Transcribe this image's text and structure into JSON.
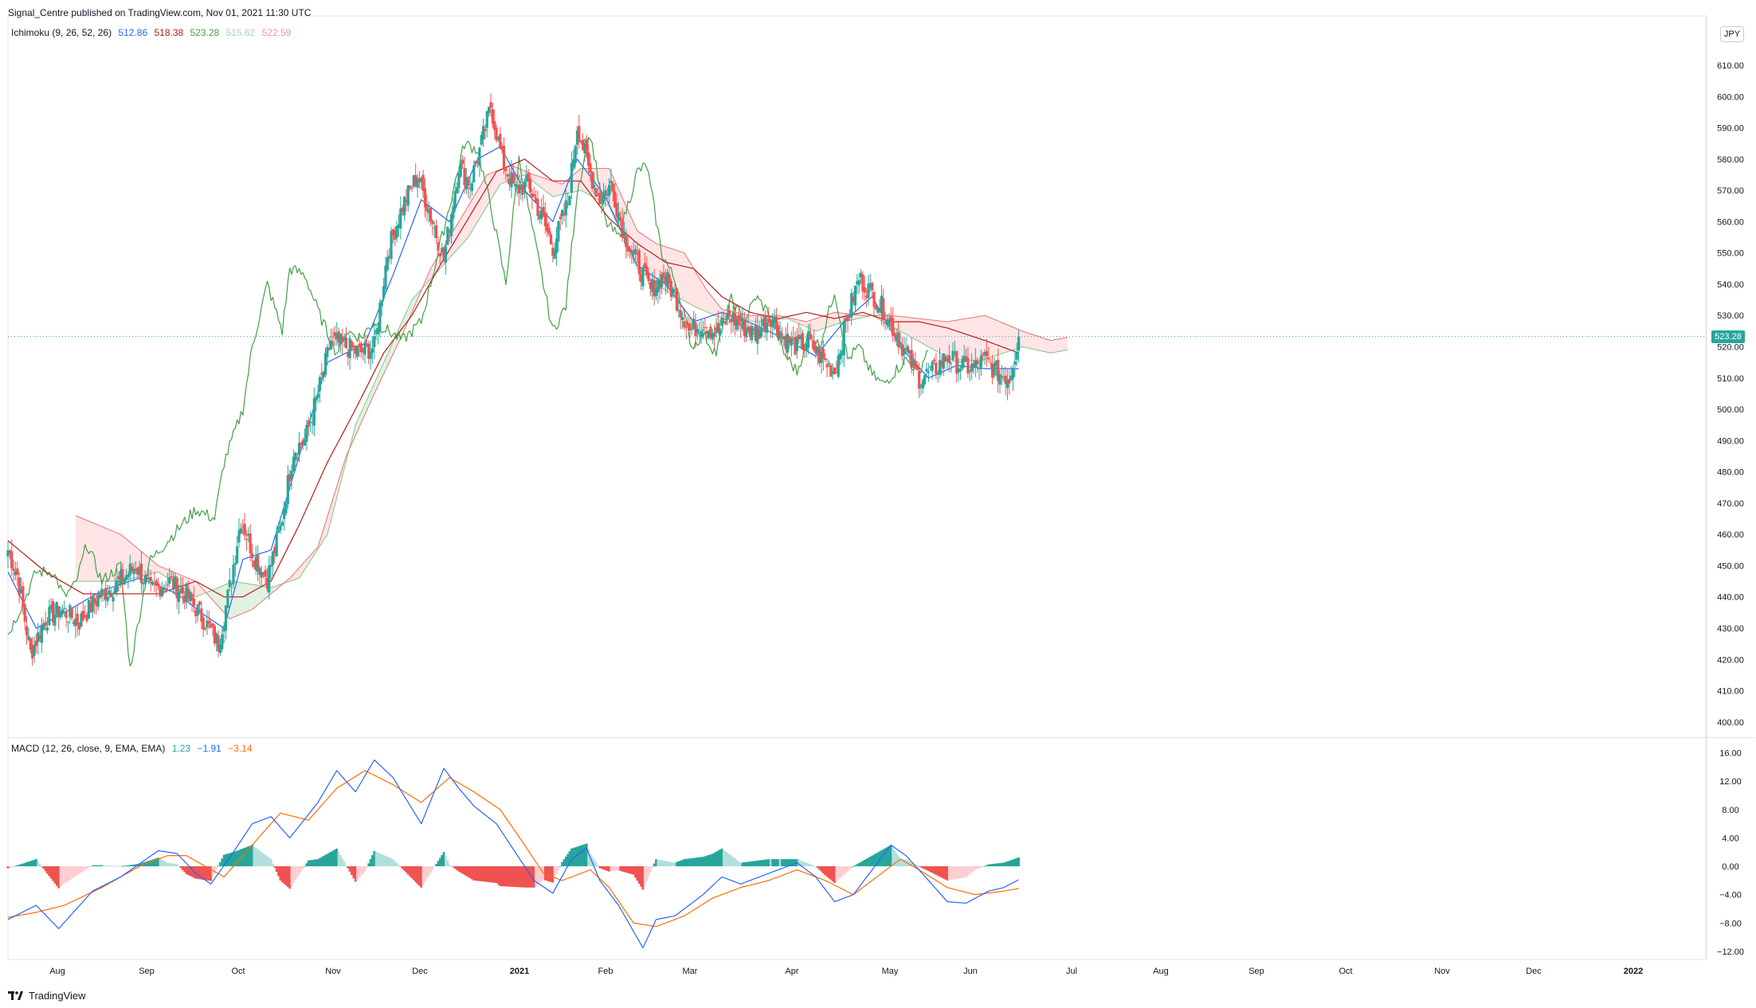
{
  "header": {
    "publisher": "Signal_Centre published on TradingView.com, Nov 01, 2021 11:30 UTC",
    "currency": "JPY",
    "last_price": "523.28",
    "logo_text": "TradingView"
  },
  "indicators": {
    "ichimoku": {
      "name": "Ichimoku (9, 26, 52, 26)",
      "values": [
        "512.86",
        "518.38",
        "523.28",
        "515.62",
        "522.59"
      ],
      "colors": [
        "#2962ff",
        "#b71c1c",
        "#43a047",
        "#a5d6a7",
        "#ef9a9a"
      ]
    },
    "macd": {
      "name": "MACD (12, 26, close, 9, EMA, EMA)",
      "values": [
        "1.23",
        "−1.91",
        "−3.14"
      ],
      "colors": [
        "#26a69a",
        "#2962ff",
        "#ff6d00"
      ]
    }
  },
  "axes": {
    "price_ticks": [
      "610.00",
      "600.00",
      "590.00",
      "580.00",
      "570.00",
      "560.00",
      "550.00",
      "540.00",
      "530.00",
      "520.00",
      "510.00",
      "500.00",
      "490.00",
      "480.00",
      "470.00",
      "460.00",
      "450.00",
      "440.00",
      "430.00",
      "420.00",
      "410.00",
      "400.00"
    ],
    "macd_ticks": [
      "16.00",
      "12.00",
      "8.00",
      "4.00",
      "0.00",
      "−4.00",
      "−8.00",
      "−12.00"
    ],
    "time_labels": [
      "Aug",
      "Sep",
      "Oct",
      "Nov",
      "Dec",
      "2021",
      "Feb",
      "Mar",
      "Apr",
      "May",
      "Jun",
      "Jul",
      "Aug",
      "Sep",
      "Oct",
      "Nov",
      "Dec",
      "2022"
    ]
  },
  "colors": {
    "up": "#26a69a",
    "down": "#ef5350",
    "tenkan": "#2962ff",
    "kijun": "#b71c1c",
    "chikou": "#43a047",
    "macd_line": "#2962ff",
    "signal_line": "#ff6d00",
    "kumo_bull": "#c8e6c9",
    "kumo_bear": "#ffcdd2"
  },
  "chart_data": {
    "type": "candlestick",
    "title": "",
    "price_range": [
      397,
      614
    ],
    "macd_range": [
      -12.6,
      17.3
    ],
    "anchors": {
      "close_path": [
        [
          0,
          455
        ],
        [
          5,
          447
        ],
        [
          12,
          422
        ],
        [
          20,
          433
        ],
        [
          28,
          436
        ],
        [
          38,
          432
        ],
        [
          48,
          440
        ],
        [
          58,
          444
        ],
        [
          68,
          450
        ],
        [
          76,
          442
        ],
        [
          86,
          445
        ],
        [
          96,
          440
        ],
        [
          105,
          432
        ],
        [
          112,
          425
        ],
        [
          118,
          443
        ],
        [
          124,
          465
        ],
        [
          131,
          453
        ],
        [
          138,
          446
        ],
        [
          145,
          462
        ],
        [
          152,
          487
        ],
        [
          158,
          490
        ],
        [
          165,
          505
        ],
        [
          172,
          522
        ],
        [
          180,
          520
        ],
        [
          187,
          518
        ],
        [
          195,
          520
        ],
        [
          202,
          550
        ],
        [
          210,
          565
        ],
        [
          218,
          575
        ],
        [
          226,
          560
        ],
        [
          232,
          548
        ],
        [
          240,
          578
        ],
        [
          246,
          572
        ],
        [
          252,
          585
        ],
        [
          257,
          597
        ],
        [
          263,
          580
        ],
        [
          270,
          570
        ],
        [
          277,
          572
        ],
        [
          283,
          563
        ],
        [
          290,
          552
        ],
        [
          298,
          566
        ],
        [
          303,
          591
        ],
        [
          309,
          577
        ],
        [
          315,
          567
        ],
        [
          321,
          572
        ],
        [
          328,
          556
        ],
        [
          334,
          548
        ],
        [
          342,
          538
        ],
        [
          349,
          543
        ],
        [
          356,
          535
        ],
        [
          363,
          525
        ],
        [
          370,
          528
        ],
        [
          377,
          524
        ],
        [
          384,
          530
        ],
        [
          390,
          527
        ],
        [
          398,
          524
        ],
        [
          406,
          530
        ],
        [
          413,
          523
        ],
        [
          420,
          520
        ],
        [
          426,
          522
        ],
        [
          432,
          517
        ],
        [
          440,
          512
        ],
        [
          447,
          530
        ],
        [
          453,
          542
        ],
        [
          460,
          537
        ],
        [
          466,
          532
        ],
        [
          472,
          525
        ],
        [
          478,
          518
        ],
        [
          485,
          510
        ],
        [
          492,
          512
        ],
        [
          500,
          517
        ],
        [
          507,
          514
        ],
        [
          514,
          513
        ],
        [
          520,
          516
        ],
        [
          526,
          512
        ],
        [
          533,
          510
        ],
        [
          538,
          523
        ]
      ]
    },
    "tenkan_anchors": [
      [
        0,
        448
      ],
      [
        15,
        430
      ],
      [
        30,
        435
      ],
      [
        50,
        442
      ],
      [
        70,
        446
      ],
      [
        90,
        441
      ],
      [
        105,
        434
      ],
      [
        115,
        430
      ],
      [
        125,
        452
      ],
      [
        140,
        455
      ],
      [
        155,
        485
      ],
      [
        170,
        515
      ],
      [
        190,
        521
      ],
      [
        205,
        543
      ],
      [
        220,
        567
      ],
      [
        235,
        560
      ],
      [
        250,
        580
      ],
      [
        262,
        584
      ],
      [
        275,
        570
      ],
      [
        290,
        560
      ],
      [
        303,
        580
      ],
      [
        318,
        568
      ],
      [
        335,
        546
      ],
      [
        350,
        540
      ],
      [
        365,
        528
      ],
      [
        380,
        531
      ],
      [
        398,
        527
      ],
      [
        415,
        522
      ],
      [
        430,
        517
      ],
      [
        445,
        528
      ],
      [
        460,
        536
      ],
      [
        475,
        520
      ],
      [
        490,
        510
      ],
      [
        505,
        514
      ],
      [
        520,
        513
      ],
      [
        538,
        513
      ]
    ],
    "kijun_anchors": [
      [
        0,
        458
      ],
      [
        20,
        448
      ],
      [
        40,
        441
      ],
      [
        60,
        441
      ],
      [
        80,
        441
      ],
      [
        100,
        445
      ],
      [
        115,
        440
      ],
      [
        125,
        440
      ],
      [
        140,
        445
      ],
      [
        155,
        463
      ],
      [
        170,
        483
      ],
      [
        185,
        500
      ],
      [
        200,
        518
      ],
      [
        215,
        530
      ],
      [
        230,
        546
      ],
      [
        245,
        561
      ],
      [
        260,
        576
      ],
      [
        275,
        580
      ],
      [
        290,
        573
      ],
      [
        305,
        573
      ],
      [
        320,
        561
      ],
      [
        335,
        553
      ],
      [
        350,
        547
      ],
      [
        365,
        545
      ],
      [
        380,
        536
      ],
      [
        395,
        531
      ],
      [
        410,
        529
      ],
      [
        425,
        531
      ],
      [
        440,
        529
      ],
      [
        455,
        531
      ],
      [
        470,
        528
      ],
      [
        485,
        528
      ],
      [
        500,
        526
      ],
      [
        520,
        522
      ],
      [
        538,
        518
      ]
    ],
    "span_a_anchors": [
      [
        36,
        445
      ],
      [
        60,
        445
      ],
      [
        80,
        448
      ],
      [
        100,
        440
      ],
      [
        120,
        445
      ],
      [
        140,
        443
      ],
      [
        155,
        446
      ],
      [
        170,
        460
      ],
      [
        185,
        495
      ],
      [
        200,
        515
      ],
      [
        215,
        535
      ],
      [
        230,
        545
      ],
      [
        245,
        555
      ],
      [
        262,
        572
      ],
      [
        275,
        575
      ],
      [
        290,
        568
      ],
      [
        305,
        570
      ],
      [
        320,
        565
      ],
      [
        335,
        545
      ],
      [
        350,
        538
      ],
      [
        365,
        533
      ],
      [
        380,
        529
      ],
      [
        398,
        528
      ],
      [
        415,
        529
      ],
      [
        430,
        525
      ],
      [
        445,
        528
      ],
      [
        460,
        530
      ],
      [
        475,
        525
      ],
      [
        490,
        520
      ],
      [
        505,
        515
      ],
      [
        520,
        516
      ],
      [
        540,
        520
      ],
      [
        555,
        518
      ],
      [
        564,
        519
      ]
    ],
    "span_b_anchors": [
      [
        36,
        466
      ],
      [
        60,
        460
      ],
      [
        80,
        450
      ],
      [
        100,
        445
      ],
      [
        118,
        433
      ],
      [
        130,
        436
      ],
      [
        150,
        446
      ],
      [
        165,
        456
      ],
      [
        180,
        485
      ],
      [
        195,
        505
      ],
      [
        210,
        524
      ],
      [
        225,
        545
      ],
      [
        240,
        560
      ],
      [
        255,
        575
      ],
      [
        268,
        578
      ],
      [
        280,
        575
      ],
      [
        295,
        572
      ],
      [
        305,
        577
      ],
      [
        320,
        577
      ],
      [
        335,
        557
      ],
      [
        345,
        553
      ],
      [
        360,
        550
      ],
      [
        372,
        538
      ],
      [
        380,
        532
      ],
      [
        395,
        530
      ],
      [
        410,
        530
      ],
      [
        425,
        528
      ],
      [
        440,
        531
      ],
      [
        455,
        530
      ],
      [
        470,
        530
      ],
      [
        485,
        529
      ],
      [
        500,
        528
      ],
      [
        520,
        530
      ],
      [
        540,
        525
      ],
      [
        555,
        522
      ],
      [
        564,
        523
      ]
    ],
    "chikou_anchors": [
      [
        0,
        428
      ],
      [
        8,
        438
      ],
      [
        15,
        448
      ],
      [
        24,
        448
      ],
      [
        30,
        440
      ],
      [
        36,
        444
      ],
      [
        42,
        457
      ],
      [
        50,
        445
      ],
      [
        60,
        450
      ],
      [
        65,
        417
      ],
      [
        75,
        451
      ],
      [
        85,
        458
      ],
      [
        100,
        468
      ],
      [
        110,
        465
      ],
      [
        115,
        483
      ],
      [
        125,
        500
      ],
      [
        130,
        520
      ],
      [
        138,
        540
      ],
      [
        146,
        525
      ],
      [
        150,
        545
      ],
      [
        158,
        543
      ],
      [
        166,
        530
      ],
      [
        175,
        518
      ],
      [
        180,
        525
      ],
      [
        188,
        523
      ],
      [
        195,
        528
      ],
      [
        210,
        522
      ],
      [
        220,
        528
      ],
      [
        235,
        565
      ],
      [
        243,
        585
      ],
      [
        250,
        583
      ],
      [
        258,
        562
      ],
      [
        265,
        540
      ],
      [
        272,
        580
      ],
      [
        280,
        555
      ],
      [
        290,
        525
      ],
      [
        297,
        533
      ],
      [
        303,
        570
      ],
      [
        310,
        588
      ],
      [
        318,
        560
      ],
      [
        325,
        555
      ],
      [
        335,
        576
      ],
      [
        340,
        578
      ],
      [
        348,
        550
      ],
      [
        356,
        540
      ],
      [
        364,
        520
      ],
      [
        370,
        524
      ],
      [
        377,
        518
      ],
      [
        385,
        535
      ],
      [
        392,
        528
      ],
      [
        398,
        536
      ],
      [
        406,
        530
      ],
      [
        413,
        518
      ],
      [
        420,
        512
      ],
      [
        427,
        525
      ],
      [
        432,
        520
      ],
      [
        440,
        538
      ],
      [
        447,
        516
      ],
      [
        453,
        520
      ],
      [
        460,
        511
      ],
      [
        466,
        508
      ],
      [
        472,
        512
      ],
      [
        478,
        516
      ],
      [
        485,
        512
      ],
      [
        490,
        520
      ]
    ],
    "macd_anchors": [
      [
        0,
        -7.5
      ],
      [
        15,
        -5.5
      ],
      [
        27,
        -8.8
      ],
      [
        45,
        -3.5
      ],
      [
        60,
        -1.5
      ],
      [
        80,
        2.2
      ],
      [
        90,
        1.8
      ],
      [
        100,
        -1
      ],
      [
        108,
        -2.5
      ],
      [
        120,
        2
      ],
      [
        130,
        6
      ],
      [
        140,
        7
      ],
      [
        150,
        4
      ],
      [
        165,
        9
      ],
      [
        175,
        13.5
      ],
      [
        185,
        10.5
      ],
      [
        195,
        15
      ],
      [
        205,
        12.5
      ],
      [
        213,
        9
      ],
      [
        220,
        6
      ],
      [
        232,
        13.8
      ],
      [
        240,
        11
      ],
      [
        248,
        8.5
      ],
      [
        260,
        6
      ],
      [
        270,
        2
      ],
      [
        280,
        -2
      ],
      [
        290,
        -3.8
      ],
      [
        300,
        1
      ],
      [
        308,
        2.5
      ],
      [
        315,
        -2
      ],
      [
        325,
        -5.5
      ],
      [
        338,
        -11.5
      ],
      [
        345,
        -7.5
      ],
      [
        355,
        -7
      ],
      [
        370,
        -4
      ],
      [
        380,
        -1.5
      ],
      [
        390,
        -2.5
      ],
      [
        405,
        -1
      ],
      [
        420,
        0.5
      ],
      [
        430,
        -1.5
      ],
      [
        440,
        -5
      ],
      [
        450,
        -4
      ],
      [
        460,
        -0.5
      ],
      [
        470,
        3
      ],
      [
        478,
        1.5
      ],
      [
        490,
        -2
      ],
      [
        500,
        -5
      ],
      [
        510,
        -5.2
      ],
      [
        522,
        -3.5
      ],
      [
        530,
        -3
      ],
      [
        538,
        -1.9
      ]
    ],
    "signal_anchors": [
      [
        0,
        -7.2
      ],
      [
        15,
        -6.5
      ],
      [
        30,
        -5.5
      ],
      [
        50,
        -3
      ],
      [
        70,
        0
      ],
      [
        85,
        1.5
      ],
      [
        95,
        1.5
      ],
      [
        105,
        0
      ],
      [
        115,
        -1.5
      ],
      [
        130,
        3
      ],
      [
        145,
        7.5
      ],
      [
        160,
        6.5
      ],
      [
        175,
        11
      ],
      [
        190,
        13.5
      ],
      [
        205,
        11.5
      ],
      [
        220,
        9
      ],
      [
        235,
        12.5
      ],
      [
        248,
        10.5
      ],
      [
        262,
        8
      ],
      [
        275,
        3
      ],
      [
        285,
        -1
      ],
      [
        295,
        -2
      ],
      [
        310,
        -0.5
      ],
      [
        320,
        -3
      ],
      [
        333,
        -8
      ],
      [
        345,
        -8.5
      ],
      [
        360,
        -7
      ],
      [
        375,
        -4.5
      ],
      [
        390,
        -3
      ],
      [
        405,
        -2
      ],
      [
        420,
        -0.5
      ],
      [
        435,
        -2
      ],
      [
        450,
        -4
      ],
      [
        465,
        -1
      ],
      [
        475,
        1
      ],
      [
        485,
        -0.5
      ],
      [
        500,
        -3
      ],
      [
        515,
        -4
      ],
      [
        530,
        -3.5
      ],
      [
        538,
        -3.14
      ]
    ],
    "x_labels": [
      "Aug",
      "Sep",
      "Oct",
      "Nov",
      "Dec",
      "2021",
      "Feb",
      "Mar",
      "Apr",
      "May",
      "Jun",
      "Jul",
      "Aug",
      "Sep",
      "Oct",
      "Nov",
      "Dec",
      "2022"
    ]
  }
}
